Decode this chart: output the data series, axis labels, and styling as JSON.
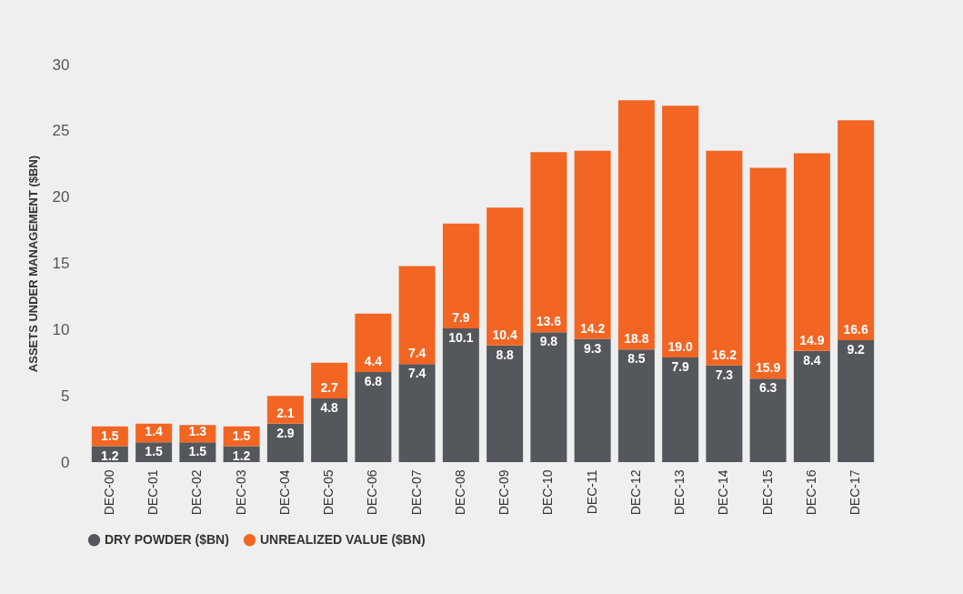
{
  "chart_data": {
    "type": "bar",
    "stacked": true,
    "ylabel": "ASSETS UNDER MANAGEMENT ($BN)",
    "categories": [
      "DEC-00",
      "DEC-01",
      "DEC-02",
      "DEC-03",
      "DEC-04",
      "DEC-05",
      "DEC-06",
      "DEC-07",
      "DEC-08",
      "DEC-09",
      "DEC-10",
      "DEC-11",
      "DEC-12",
      "DEC-13",
      "DEC-14",
      "DEC-15",
      "DEC-16",
      "DEC-17"
    ],
    "series": [
      {
        "name": "DRY POWDER ($BN)",
        "color": "#54575b",
        "values": [
          1.2,
          1.5,
          1.5,
          1.2,
          2.9,
          4.8,
          6.8,
          7.4,
          10.1,
          8.8,
          9.8,
          9.3,
          8.5,
          7.9,
          7.3,
          6.3,
          8.4,
          9.2
        ],
        "value_labels": [
          "1.2",
          "1.5",
          "1.5",
          "1.2",
          "2.9",
          "4.8",
          "6.8",
          "7.4",
          "10.1",
          "8.8",
          "9.8",
          "9.3",
          "8.5",
          "7.9",
          "7.3",
          "6.3",
          "8.4",
          "9.2"
        ]
      },
      {
        "name": "UNREALIZED VALUE ($BN)",
        "color": "#f26522",
        "values": [
          1.5,
          1.4,
          1.3,
          1.5,
          2.1,
          2.7,
          4.4,
          7.4,
          7.9,
          10.4,
          13.6,
          14.2,
          18.8,
          19.0,
          16.2,
          15.9,
          14.9,
          16.6
        ],
        "value_labels": [
          "1.5",
          "1.4",
          "1.3",
          "1.5",
          "2.1",
          "2.7",
          "4.4",
          "7.4",
          "7.9",
          "10.4",
          "13.6",
          "14.2",
          "18.8",
          "19.0",
          "16.2",
          "15.9",
          "14.9",
          "16.6"
        ]
      }
    ],
    "ylim": [
      0,
      30
    ],
    "yticks": [
      0,
      5,
      10,
      15,
      20,
      25,
      30
    ],
    "grid": false,
    "legend": "bottom"
  }
}
